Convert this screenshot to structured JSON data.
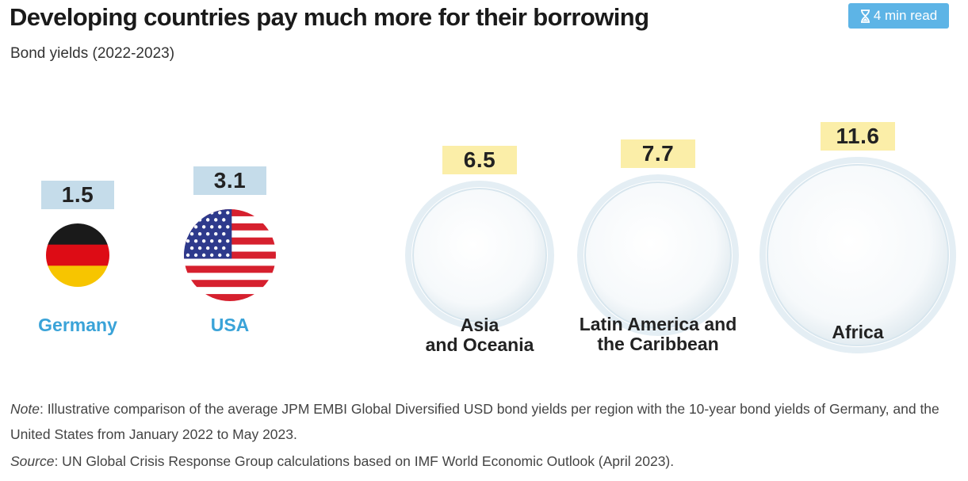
{
  "header": {
    "title": "Developing countries pay much more for their borrowing",
    "subtitle": "Bond yields (2022-2023)",
    "read_time": "4 min read"
  },
  "chart_data": {
    "type": "bar",
    "title": "Developing countries pay much more for their borrowing",
    "subtitle": "Bond yields (2022-2023)",
    "categories": [
      "Germany",
      "USA",
      "Asia and Oceania",
      "Latin America and the Caribbean",
      "Africa"
    ],
    "values": [
      1.5,
      3.1,
      6.5,
      7.7,
      11.6
    ],
    "labels": [
      "1.5",
      "3.1",
      "6.5",
      "7.7",
      "11.6"
    ],
    "items": [
      {
        "name_lines": [
          "Germany"
        ],
        "value": 1.5,
        "value_label": "1.5",
        "kind": "country",
        "icon": "germany-flag"
      },
      {
        "name_lines": [
          "USA"
        ],
        "value": 3.1,
        "value_label": "3.1",
        "kind": "country",
        "icon": "usa-flag"
      },
      {
        "name_lines": [
          "Asia",
          "and Oceania"
        ],
        "value": 6.5,
        "value_label": "6.5",
        "kind": "region",
        "icon": "globe-asia-oceania"
      },
      {
        "name_lines": [
          "Latin America and",
          "the Caribbean"
        ],
        "value": 7.7,
        "value_label": "7.7",
        "kind": "region",
        "icon": "globe-latin-america"
      },
      {
        "name_lines": [
          "Africa"
        ],
        "value": 11.6,
        "value_label": "11.6",
        "kind": "region",
        "icon": "globe-africa"
      }
    ]
  },
  "footer": {
    "note_label": "Note",
    "note_text": ": Illustrative comparison of the average JPM EMBI Global Diversified USD bond yields per region with the 10-year bond yields of Germany, and the United States from January 2022 to May 2023.",
    "source_label": "Source",
    "source_text": ": UN Global Crisis Response Group calculations based on IMF World Economic Outlook (April 2023)."
  },
  "colors": {
    "country_box": "#c5dcea",
    "region_box": "#fbeea8",
    "country_label": "#3aa3d8",
    "region_fill": "#f5bd06",
    "badge": "#5db4e6"
  }
}
